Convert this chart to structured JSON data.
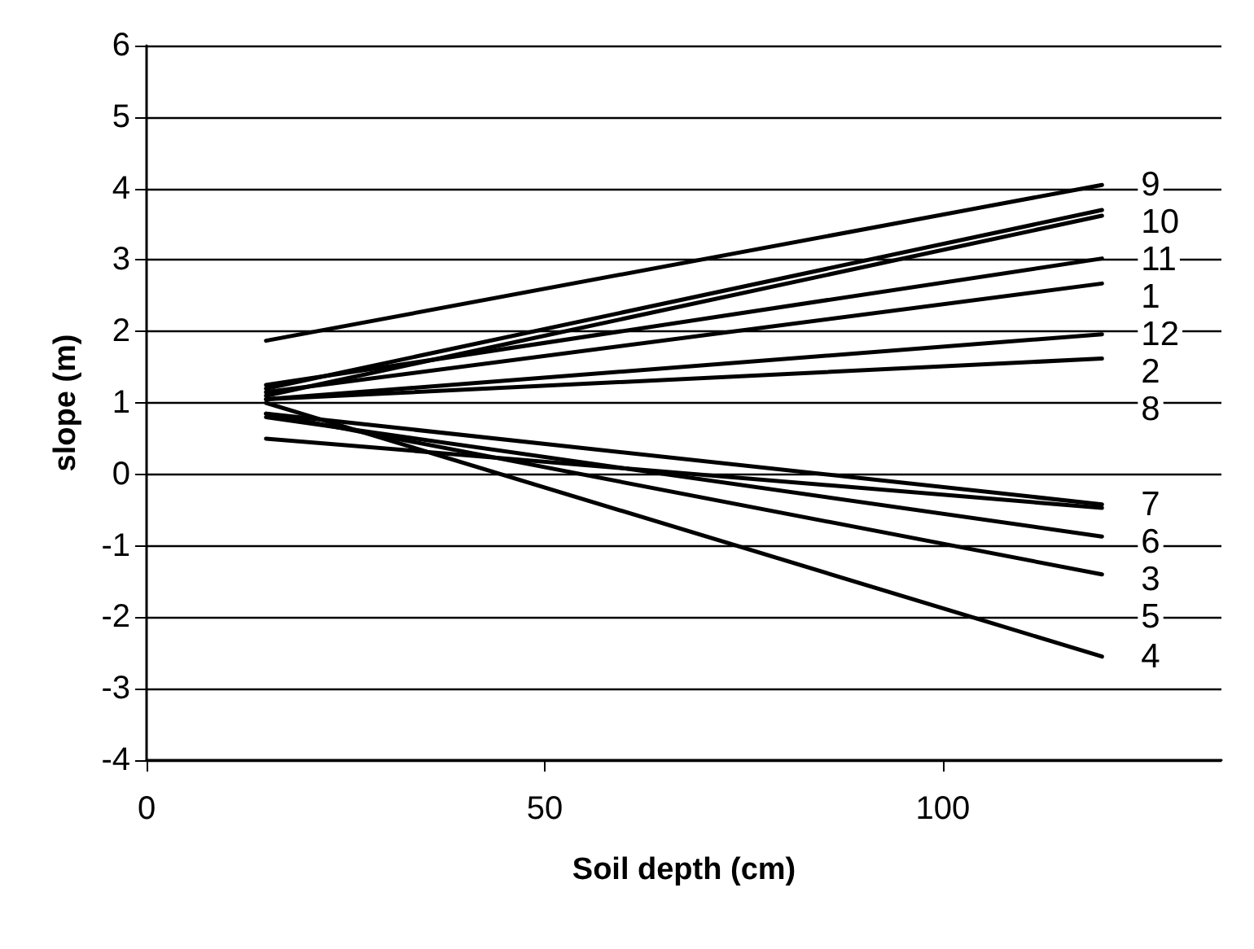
{
  "chart_data": {
    "type": "line",
    "xlabel": "Soil depth (cm)",
    "ylabel": "slope (m)",
    "xlim": [
      0,
      135
    ],
    "xticks": [
      0,
      50,
      100
    ],
    "ylim": [
      -4,
      6
    ],
    "yticks": [
      -4,
      -3,
      -2,
      -1,
      0,
      1,
      2,
      3,
      4,
      5,
      6
    ],
    "grid": "y",
    "legend": false,
    "marker": "none",
    "line_style": "solid",
    "x": [
      15,
      120
    ],
    "series": [
      {
        "name": "1",
        "color": "#000000",
        "values": [
          1.25,
          3.02
        ]
      },
      {
        "name": "2",
        "color": "#000000",
        "values": [
          1.05,
          1.96
        ]
      },
      {
        "name": "3",
        "color": "#000000",
        "values": [
          0.8,
          -0.87
        ]
      },
      {
        "name": "4",
        "color": "#000000",
        "values": [
          1.0,
          -2.55
        ]
      },
      {
        "name": "5",
        "color": "#000000",
        "values": [
          0.85,
          -1.4
        ]
      },
      {
        "name": "6",
        "color": "#000000",
        "values": [
          0.5,
          -0.47
        ]
      },
      {
        "name": "7",
        "color": "#000000",
        "values": [
          0.85,
          -0.42
        ]
      },
      {
        "name": "8",
        "color": "#000000",
        "values": [
          1.05,
          1.62
        ]
      },
      {
        "name": "9",
        "color": "#000000",
        "values": [
          1.87,
          4.05
        ]
      },
      {
        "name": "10",
        "color": "#000000",
        "values": [
          1.2,
          3.7
        ]
      },
      {
        "name": "11",
        "color": "#000000",
        "values": [
          1.1,
          3.62
        ]
      },
      {
        "name": "12",
        "color": "#000000",
        "values": [
          1.15,
          2.67
        ]
      }
    ]
  }
}
